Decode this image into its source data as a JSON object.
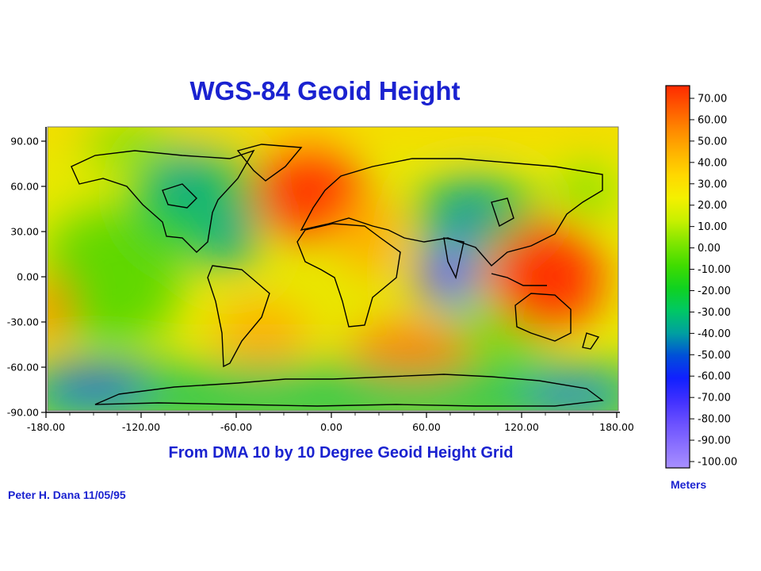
{
  "title": "WGS-84 Geoid Height",
  "subtitle": "From DMA 10 by 10 Degree Geoid Height Grid",
  "credit": "Peter H. Dana 11/05/95",
  "colorbar": {
    "units": "Meters",
    "labels": [
      "70.00",
      "60.00",
      "50.00",
      "40.00",
      "30.00",
      "20.00",
      "10.00",
      "0.00",
      "-10.00",
      "-20.00",
      "-30.00",
      "-40.00",
      "-50.00",
      "-60.00",
      "-70.00",
      "-80.00",
      "-90.00",
      "-100.00"
    ],
    "colors": [
      "#ff2a00",
      "#ff5a00",
      "#ff8a00",
      "#ffb400",
      "#ffd800",
      "#f4f000",
      "#c8f000",
      "#80e600",
      "#40dc00",
      "#10d220",
      "#00c864",
      "#00a0a0",
      "#0050d8",
      "#1020ff",
      "#4030ff",
      "#6a50ff",
      "#8a70ff",
      "#a890ff"
    ]
  },
  "map": {
    "x_ticks": [
      "-180.00",
      "-120.00",
      "-60.00",
      "0.00",
      "60.00",
      "120.00",
      "180.00"
    ],
    "y_ticks": [
      "90.00",
      "60.00",
      "30.00",
      "0.00",
      "-30.00",
      "-60.00",
      "-90.00"
    ]
  },
  "chart_data": {
    "type": "heatmap",
    "title": "WGS-84 Geoid Height",
    "xlabel": "",
    "ylabel": "",
    "xlim": [
      -180,
      180
    ],
    "ylim": [
      -90,
      90
    ],
    "value_range": [
      -100,
      70
    ],
    "value_unit": "Meters",
    "features": [
      {
        "lon": 80,
        "lat": 5,
        "value": -100
      },
      {
        "lon": 145,
        "lat": -5,
        "value": 70
      },
      {
        "lon": -20,
        "lat": 55,
        "value": 65
      },
      {
        "lon": 40,
        "lat": -45,
        "value": 45
      },
      {
        "lon": -180,
        "lat": -25,
        "value": 40
      },
      {
        "lon": -70,
        "lat": 15,
        "value": -45
      },
      {
        "lon": -100,
        "lat": 60,
        "value": -40
      },
      {
        "lon": 90,
        "lat": 50,
        "value": -45
      },
      {
        "lon": -150,
        "lat": -70,
        "value": -60
      },
      {
        "lon": 100,
        "lat": -75,
        "value": -30
      },
      {
        "lon": -30,
        "lat": -40,
        "value": 10
      }
    ]
  }
}
